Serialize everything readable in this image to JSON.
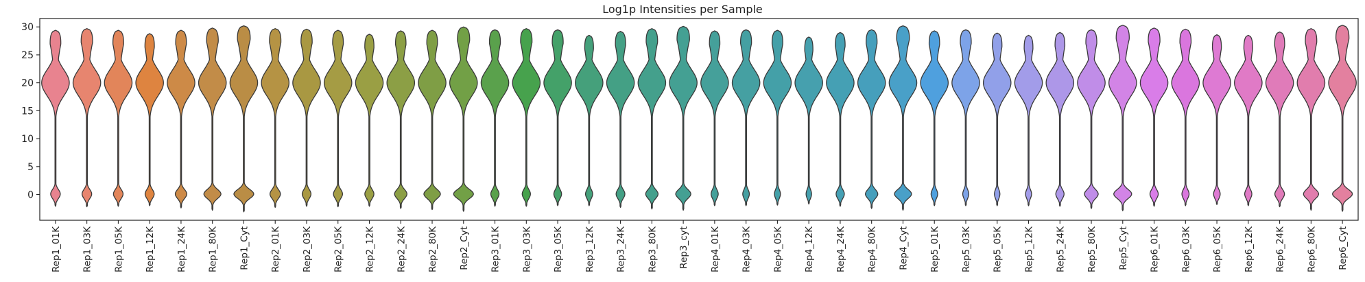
{
  "chart_data": {
    "type": "violin",
    "title": "Log1p Intensities per Sample",
    "xlabel": "",
    "ylabel": "",
    "ylim": [
      -4.6,
      31.5
    ],
    "yticks": [
      0,
      5,
      10,
      15,
      20,
      25,
      30
    ],
    "grid": false,
    "legend": "none",
    "series": [
      {
        "name": "Rep1_01K",
        "color": "#e8838f",
        "min": -2.1,
        "max": 29.4,
        "median": 20.0,
        "zero_width": 0.35
      },
      {
        "name": "Rep1_03K",
        "color": "#e7856f",
        "min": -2.2,
        "max": 29.7,
        "median": 20.0,
        "zero_width": 0.35
      },
      {
        "name": "Rep1_05K",
        "color": "#e2855a",
        "min": -2.1,
        "max": 29.4,
        "median": 20.0,
        "zero_width": 0.35
      },
      {
        "name": "Rep1_12K",
        "color": "#de8440",
        "min": -2.0,
        "max": 28.8,
        "median": 20.0,
        "zero_width": 0.33
      },
      {
        "name": "Rep1_24K",
        "color": "#cd8a47",
        "min": -2.4,
        "max": 29.4,
        "median": 20.0,
        "zero_width": 0.42
      },
      {
        "name": "Rep1_80K",
        "color": "#c28c48",
        "min": -2.8,
        "max": 29.8,
        "median": 20.0,
        "zero_width": 0.62
      },
      {
        "name": "Rep1_Cyt",
        "color": "#ba8d45",
        "min": -3.1,
        "max": 30.2,
        "median": 20.0,
        "zero_width": 0.72
      },
      {
        "name": "Rep2_01K",
        "color": "#b59344",
        "min": -2.3,
        "max": 29.7,
        "median": 20.0,
        "zero_width": 0.38
      },
      {
        "name": "Rep2_03K",
        "color": "#a99842",
        "min": -2.1,
        "max": 29.6,
        "median": 20.0,
        "zero_width": 0.32
      },
      {
        "name": "Rep2_05K",
        "color": "#a59c44",
        "min": -2.2,
        "max": 29.4,
        "median": 20.0,
        "zero_width": 0.33
      },
      {
        "name": "Rep2_12K",
        "color": "#9a9f44",
        "min": -2.1,
        "max": 28.7,
        "median": 20.0,
        "zero_width": 0.33
      },
      {
        "name": "Rep2_24K",
        "color": "#8c9f45",
        "min": -2.5,
        "max": 29.3,
        "median": 20.0,
        "zero_width": 0.45
      },
      {
        "name": "Rep2_80K",
        "color": "#7f9e45",
        "min": -2.7,
        "max": 29.4,
        "median": 20.0,
        "zero_width": 0.6
      },
      {
        "name": "Rep2_Cyt",
        "color": "#72a046",
        "min": -3.0,
        "max": 30.0,
        "median": 20.0,
        "zero_width": 0.72
      },
      {
        "name": "Rep3_01K",
        "color": "#5aa14c",
        "min": -2.1,
        "max": 29.5,
        "median": 20.0,
        "zero_width": 0.3
      },
      {
        "name": "Rep3_03K",
        "color": "#47a24d",
        "min": -2.1,
        "max": 29.7,
        "median": 20.0,
        "zero_width": 0.3
      },
      {
        "name": "Rep3_05K",
        "color": "#44a169",
        "min": -2.0,
        "max": 29.5,
        "median": 20.0,
        "zero_width": 0.28
      },
      {
        "name": "Rep3_12K",
        "color": "#45a07b",
        "min": -2.0,
        "max": 28.5,
        "median": 20.0,
        "zero_width": 0.26
      },
      {
        "name": "Rep3_24K",
        "color": "#44a085",
        "min": -2.3,
        "max": 29.2,
        "median": 20.0,
        "zero_width": 0.32
      },
      {
        "name": "Rep3_80K",
        "color": "#44a08c",
        "min": -2.6,
        "max": 29.7,
        "median": 20.0,
        "zero_width": 0.45
      },
      {
        "name": "Rep3_cyt",
        "color": "#44a093",
        "min": -2.8,
        "max": 30.1,
        "median": 20.0,
        "zero_width": 0.55
      },
      {
        "name": "Rep4_01K",
        "color": "#45a09a",
        "min": -2.0,
        "max": 29.3,
        "median": 20.0,
        "zero_width": 0.26
      },
      {
        "name": "Rep4_03K",
        "color": "#45a0a2",
        "min": -2.0,
        "max": 29.5,
        "median": 20.0,
        "zero_width": 0.24
      },
      {
        "name": "Rep4_05K",
        "color": "#44a0a8",
        "min": -1.9,
        "max": 29.4,
        "median": 20.0,
        "zero_width": 0.22
      },
      {
        "name": "Rep4_12K",
        "color": "#46a0ae",
        "min": -1.7,
        "max": 28.2,
        "median": 20.0,
        "zero_width": 0.2
      },
      {
        "name": "Rep4_24K",
        "color": "#45a0b4",
        "min": -2.1,
        "max": 29.0,
        "median": 20.0,
        "zero_width": 0.3
      },
      {
        "name": "Rep4_80K",
        "color": "#469fbc",
        "min": -2.5,
        "max": 29.5,
        "median": 20.0,
        "zero_width": 0.45
      },
      {
        "name": "Rep4_Cyt",
        "color": "#49a0c8",
        "min": -2.8,
        "max": 30.2,
        "median": 20.0,
        "zero_width": 0.62
      },
      {
        "name": "Rep5_01K",
        "color": "#4fa0de",
        "min": -2.0,
        "max": 29.3,
        "median": 20.0,
        "zero_width": 0.24
      },
      {
        "name": "Rep5_03K",
        "color": "#7da3e8",
        "min": -2.0,
        "max": 29.5,
        "median": 20.0,
        "zero_width": 0.22
      },
      {
        "name": "Rep5_05K",
        "color": "#91a0e9",
        "min": -2.0,
        "max": 28.9,
        "median": 20.0,
        "zero_width": 0.2
      },
      {
        "name": "Rep5_12K",
        "color": "#a29ce9",
        "min": -2.0,
        "max": 28.5,
        "median": 20.0,
        "zero_width": 0.22
      },
      {
        "name": "Rep5_24K",
        "color": "#ad97e8",
        "min": -2.1,
        "max": 29.0,
        "median": 20.0,
        "zero_width": 0.3
      },
      {
        "name": "Rep5_80K",
        "color": "#c08de8",
        "min": -2.5,
        "max": 29.5,
        "median": 20.0,
        "zero_width": 0.5
      },
      {
        "name": "Rep5_Cyt",
        "color": "#d284e6",
        "min": -2.9,
        "max": 30.3,
        "median": 20.0,
        "zero_width": 0.65
      },
      {
        "name": "Rep6_01K",
        "color": "#d97de8",
        "min": -2.1,
        "max": 29.8,
        "median": 20.0,
        "zero_width": 0.3
      },
      {
        "name": "Rep6_03K",
        "color": "#da76de",
        "min": -2.0,
        "max": 29.6,
        "median": 20.0,
        "zero_width": 0.26
      },
      {
        "name": "Rep6_05K",
        "color": "#de7ad3",
        "min": -1.8,
        "max": 28.6,
        "median": 20.0,
        "zero_width": 0.24
      },
      {
        "name": "Rep6_12K",
        "color": "#e07ac6",
        "min": -2.0,
        "max": 28.5,
        "median": 20.0,
        "zero_width": 0.26
      },
      {
        "name": "Rep6_24K",
        "color": "#e07bb9",
        "min": -2.2,
        "max": 29.1,
        "median": 20.0,
        "zero_width": 0.35
      },
      {
        "name": "Rep6_80K",
        "color": "#e17dad",
        "min": -2.8,
        "max": 29.7,
        "median": 20.0,
        "zero_width": 0.55
      },
      {
        "name": "Rep6_Cyt",
        "color": "#e3809f",
        "min": -3.0,
        "max": 30.3,
        "median": 20.0,
        "zero_width": 0.72
      }
    ]
  }
}
